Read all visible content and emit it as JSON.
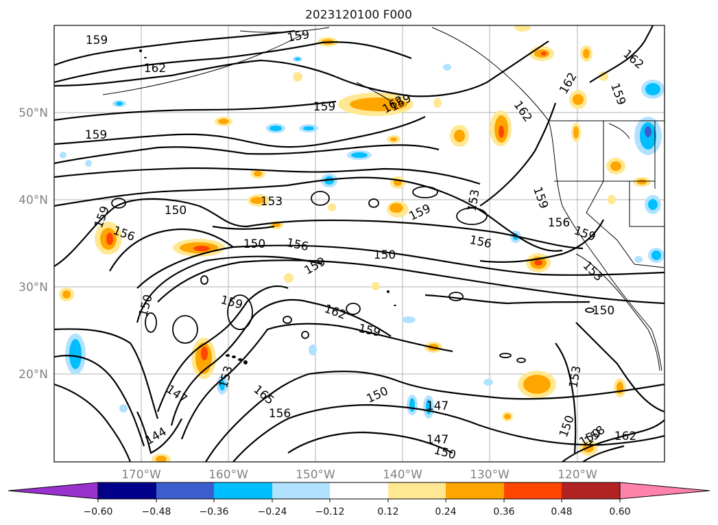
{
  "map": {
    "title": "2023120100 F000",
    "lat_labels": [
      "50°N",
      "40°N",
      "30°N",
      "20°N"
    ],
    "lon_labels": [
      "170°W",
      "160°W",
      "150°W",
      "140°W",
      "130°W",
      "120°W"
    ],
    "extent": {
      "lon": [
        -180,
        -110
      ],
      "lat": [
        10,
        60
      ]
    },
    "gridlines": true,
    "contour_color": "#000000",
    "contour_labels": [
      "159",
      "162",
      "159",
      "162",
      "159",
      "159",
      "150",
      "156",
      "153",
      "150",
      "156",
      "159",
      "153",
      "150",
      "159",
      "156",
      "162",
      "159",
      "156",
      "150",
      "153",
      "159",
      "162",
      "159",
      "150",
      "150",
      "147",
      "153",
      "165",
      "156",
      "150",
      "147",
      "144",
      "147",
      "150",
      "153",
      "150",
      "158",
      "162",
      "162",
      "159",
      "159",
      "159",
      "162",
      "159"
    ]
  },
  "colorbar": {
    "ticks": [
      "−0.60",
      "−0.48",
      "−0.36",
      "−0.24",
      "−0.12",
      "0.12",
      "0.24",
      "0.36",
      "0.48",
      "0.60"
    ],
    "colors": [
      "#9932cc",
      "#00008b",
      "#3a5fcd",
      "#00bfff",
      "#b0e2ff",
      "#ffffff",
      "#ffe891",
      "#ffa500",
      "#ff4500",
      "#b22222",
      "#ff82ab"
    ]
  }
}
